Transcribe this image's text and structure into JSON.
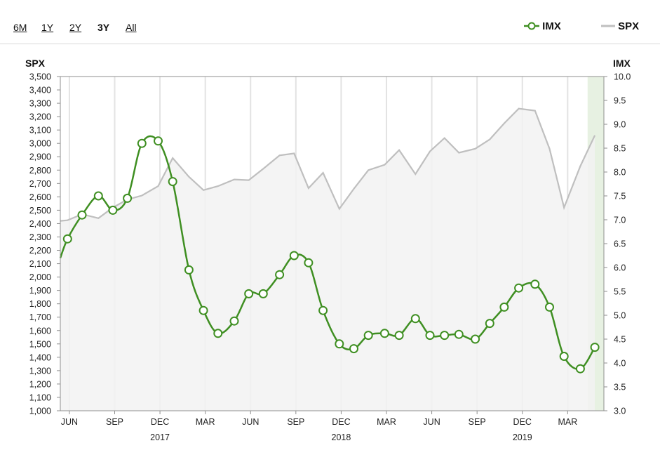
{
  "range_selector": {
    "options": [
      "6M",
      "1Y",
      "2Y",
      "3Y",
      "All"
    ],
    "selected": "3Y"
  },
  "legend": {
    "imx": "IMX",
    "spx": "SPX"
  },
  "colors": {
    "imx": "#3f8f22",
    "spx": "#bfbfbf",
    "spx_fill": "#f2f2f2",
    "highlight": "#e7f1e2"
  },
  "chart_data": {
    "type": "line",
    "left_axis": {
      "label": "SPX",
      "min": 1000,
      "max": 3500,
      "step": 100,
      "ticks": [
        "1,000",
        "1,100",
        "1,200",
        "1,300",
        "1,400",
        "1,500",
        "1,600",
        "1,700",
        "1,800",
        "1,900",
        "2,000",
        "2,100",
        "2,200",
        "2,300",
        "2,400",
        "2,500",
        "2,600",
        "2,700",
        "2,800",
        "2,900",
        "3,000",
        "3,100",
        "3,200",
        "3,300",
        "3,400",
        "3,500"
      ]
    },
    "right_axis": {
      "label": "IMX",
      "min": 3.0,
      "max": 10.0,
      "step": 0.5,
      "ticks": [
        "3.0",
        "3.5",
        "4.0",
        "4.5",
        "5.0",
        "5.5",
        "6.0",
        "6.5",
        "7.0",
        "7.5",
        "8.0",
        "8.5",
        "9.0",
        "9.5",
        "10.0"
      ]
    },
    "x_ticks": [
      {
        "label": "JUN",
        "x": 2016.42
      },
      {
        "label": "SEP",
        "x": 2016.67
      },
      {
        "label": "DEC",
        "x": 2016.92
      },
      {
        "label": "MAR",
        "x": 2017.17
      },
      {
        "label": "JUN",
        "x": 2017.42
      },
      {
        "label": "SEP",
        "x": 2017.67
      },
      {
        "label": "DEC",
        "x": 2017.92
      },
      {
        "label": "MAR",
        "x": 2018.17
      },
      {
        "label": "JUN",
        "x": 2018.42
      },
      {
        "label": "SEP",
        "x": 2018.67
      },
      {
        "label": "DEC",
        "x": 2018.92
      },
      {
        "label": "MAR",
        "x": 2019.17
      }
    ],
    "year_labels": [
      {
        "label": "2017",
        "x": 2016.92
      },
      {
        "label": "2018",
        "x": 2017.92
      },
      {
        "label": "2019",
        "x": 2018.92
      }
    ],
    "x_range": [
      2016.37,
      2019.37
    ],
    "highlight_range": [
      2019.28,
      2019.37
    ],
    "series": [
      {
        "name": "SPX",
        "x": [
          2016.37,
          2016.41,
          2016.49,
          2016.58,
          2016.66,
          2016.74,
          2016.82,
          2016.91,
          2016.99,
          2017.08,
          2017.16,
          2017.24,
          2017.33,
          2017.41,
          2017.49,
          2017.58,
          2017.66,
          2017.74,
          2017.82,
          2017.91,
          2017.99,
          2018.07,
          2018.16,
          2018.24,
          2018.33,
          2018.41,
          2018.49,
          2018.57,
          2018.66,
          2018.74,
          2018.82,
          2018.9,
          2018.99,
          2019.07,
          2019.15,
          2019.24,
          2019.32
        ],
        "values": [
          2420,
          2425,
          2470,
          2440,
          2520,
          2580,
          2610,
          2680,
          2890,
          2750,
          2650,
          2680,
          2730,
          2725,
          2810,
          2910,
          2925,
          2665,
          2780,
          2510,
          2660,
          2800,
          2840,
          2950,
          2770,
          2940,
          3040,
          2930,
          2960,
          3030,
          3150,
          3260,
          3245,
          2960,
          2520,
          2830,
          3060
        ]
      },
      {
        "name": "IMX",
        "x": [
          2016.37,
          2016.41,
          2016.49,
          2016.58,
          2016.66,
          2016.74,
          2016.82,
          2016.91,
          2016.99,
          2017.08,
          2017.16,
          2017.24,
          2017.33,
          2017.41,
          2017.49,
          2017.58,
          2017.66,
          2017.74,
          2017.82,
          2017.91,
          2017.99,
          2018.07,
          2018.16,
          2018.24,
          2018.33,
          2018.41,
          2018.49,
          2018.57,
          2018.66,
          2018.74,
          2018.82,
          2018.9,
          2018.99,
          2019.07,
          2019.15,
          2019.24,
          2019.32
        ],
        "values": [
          6.2,
          6.6,
          7.1,
          7.5,
          7.2,
          7.45,
          8.6,
          8.65,
          7.8,
          5.95,
          5.1,
          4.62,
          4.88,
          5.45,
          5.45,
          5.85,
          6.25,
          6.1,
          5.1,
          4.4,
          4.3,
          4.58,
          4.62,
          4.58,
          4.93,
          4.58,
          4.58,
          4.6,
          4.5,
          4.83,
          5.17,
          5.57,
          5.65,
          5.17,
          4.14,
          3.88,
          4.33
        ]
      }
    ]
  }
}
